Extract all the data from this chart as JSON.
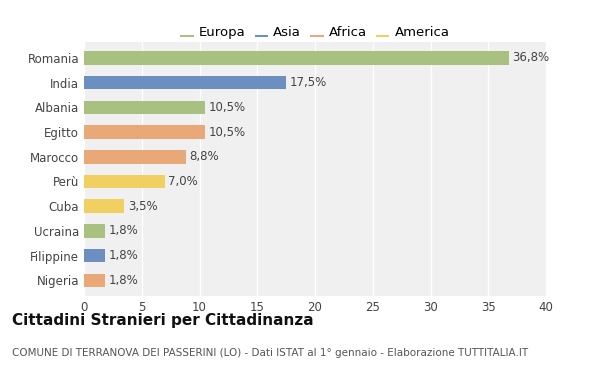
{
  "countries": [
    "Romania",
    "India",
    "Albania",
    "Egitto",
    "Marocco",
    "Perù",
    "Cuba",
    "Ucraina",
    "Filippine",
    "Nigeria"
  ],
  "values": [
    36.8,
    17.5,
    10.5,
    10.5,
    8.8,
    7.0,
    3.5,
    1.8,
    1.8,
    1.8
  ],
  "labels": [
    "36,8%",
    "17,5%",
    "10,5%",
    "10,5%",
    "8,8%",
    "7,0%",
    "3,5%",
    "1,8%",
    "1,8%",
    "1,8%"
  ],
  "continents": [
    "Europa",
    "Asia",
    "Europa",
    "Africa",
    "Africa",
    "America",
    "America",
    "Europa",
    "Asia",
    "Africa"
  ],
  "colors": {
    "Asia": "#6b8fc0",
    "Africa": "#e8a878",
    "America": "#f0d060"
  },
  "legend_order": [
    "Europa",
    "Asia",
    "Africa",
    "America"
  ],
  "title": "Cittadini Stranieri per Cittadinanza",
  "subtitle": "COMUNE DI TERRANOVA DEI PASSERINI (LO) - Dati ISTAT al 1° gennaio - Elaborazione TUTTITALIA.IT",
  "xlim": [
    0,
    40
  ],
  "xticks": [
    0,
    5,
    10,
    15,
    20,
    25,
    30,
    35,
    40
  ],
  "bg_color": "#ffffff",
  "bar_height": 0.55,
  "title_fontsize": 11,
  "subtitle_fontsize": 7.5,
  "tick_fontsize": 8.5,
  "label_fontsize": 8.5,
  "legend_fontsize": 9.5
}
